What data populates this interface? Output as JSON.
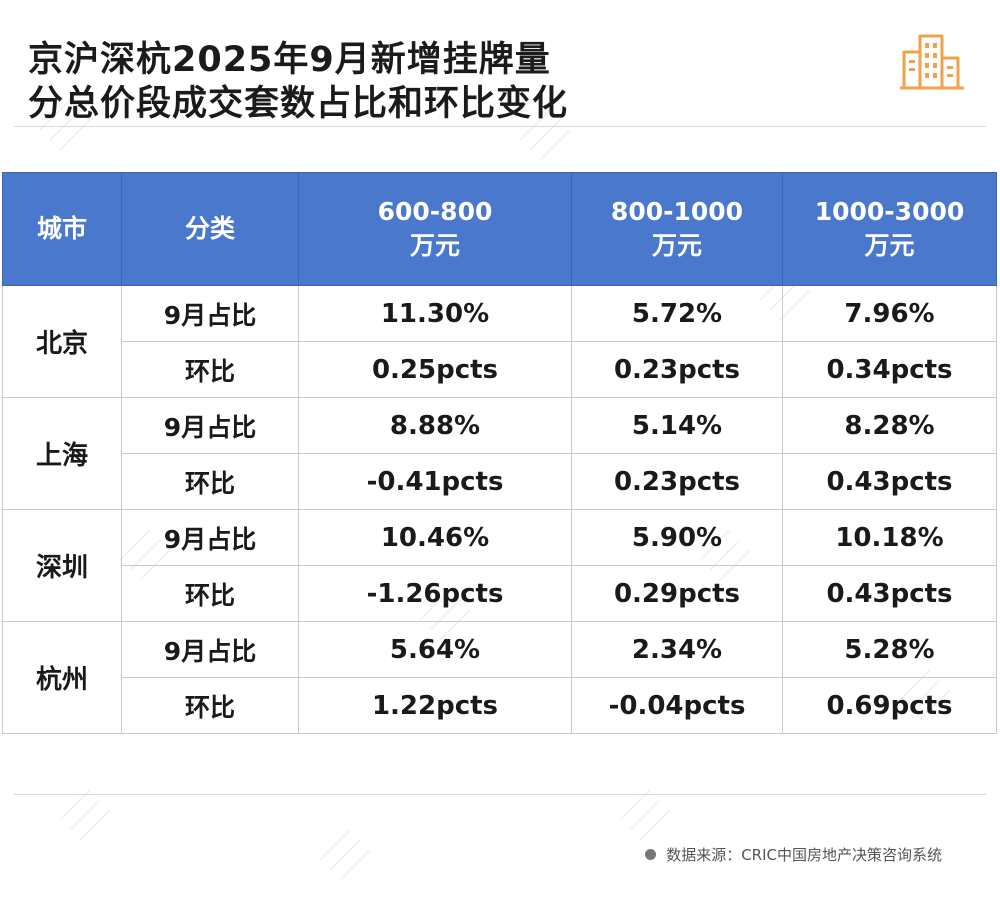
{
  "title": {
    "line1": "京沪深杭2025年9月新增挂牌量",
    "line2": "分总价段成交套数占比和环比变化"
  },
  "table": {
    "headers": {
      "city": "城市",
      "category": "分类",
      "col1_top": "600-800",
      "col1_bottom": "万元",
      "col2_top": "800-1000",
      "col2_bottom": "万元",
      "col3_top": "1000-3000",
      "col3_bottom": "万元"
    },
    "labels": {
      "share": "9月占比",
      "mom": "环比"
    },
    "cities": [
      {
        "name": "北京",
        "share": [
          "11.30%",
          "5.72%",
          "7.96%"
        ],
        "mom": [
          "0.25pcts",
          "0.23pcts",
          "0.34pcts"
        ]
      },
      {
        "name": "上海",
        "share": [
          "8.88%",
          "5.14%",
          "8.28%"
        ],
        "mom": [
          "-0.41pcts",
          "0.23pcts",
          "0.43pcts"
        ]
      },
      {
        "name": "深圳",
        "share": [
          "10.46%",
          "5.90%",
          "10.18%"
        ],
        "mom": [
          "-1.26pcts",
          "0.29pcts",
          "0.43pcts"
        ]
      },
      {
        "name": "杭州",
        "share": [
          "5.64%",
          "2.34%",
          "5.28%"
        ],
        "mom": [
          "1.22pcts",
          "-0.04pcts",
          "0.69pcts"
        ]
      }
    ]
  },
  "source": "数据来源：CRIC中国房地产决策咨询系统",
  "colors": {
    "header_bg": "#4a78cc",
    "increase": "#e0191d",
    "decrease": "#1f9c44",
    "icon_accent": "#f0a24a"
  },
  "icons": {
    "corner": "building-icon",
    "source_marker": "dot-icon"
  }
}
